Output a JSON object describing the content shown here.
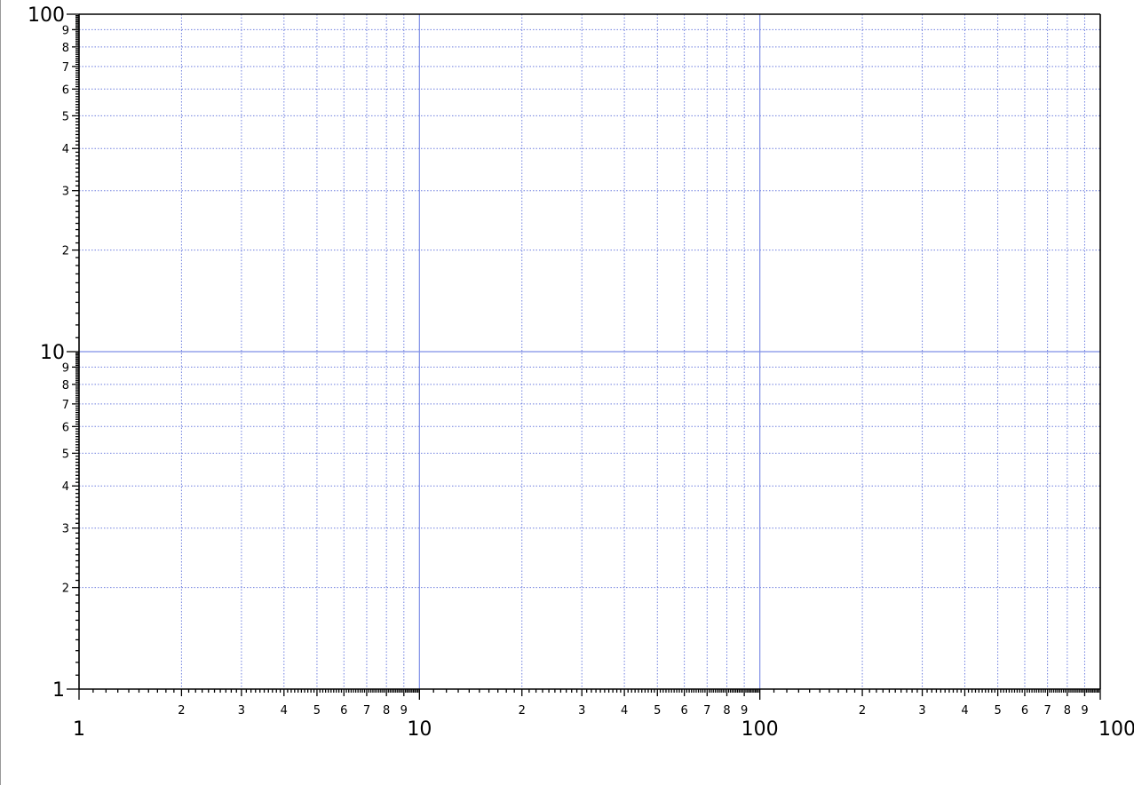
{
  "chart_data": {
    "type": "line",
    "title": "",
    "xlabel": "",
    "ylabel": "",
    "x_scale": "log",
    "y_scale": "log",
    "xlim": [
      1,
      1000
    ],
    "ylim": [
      1,
      100
    ],
    "grid": {
      "major": true,
      "minor": true
    },
    "x_major_ticks": [
      "1",
      "10",
      "100",
      "1000"
    ],
    "x_minor_tick_labels": [
      "2",
      "3",
      "4",
      "5",
      "6",
      "7",
      "8",
      "9"
    ],
    "y_major_ticks": [
      "1",
      "10",
      "100"
    ],
    "y_minor_tick_labels": [
      "2",
      "3",
      "4",
      "5",
      "6",
      "7",
      "8",
      "9"
    ],
    "series": []
  },
  "colors": {
    "grid": "#6f7fdf",
    "axis": "#000000",
    "background": "#ffffff"
  }
}
